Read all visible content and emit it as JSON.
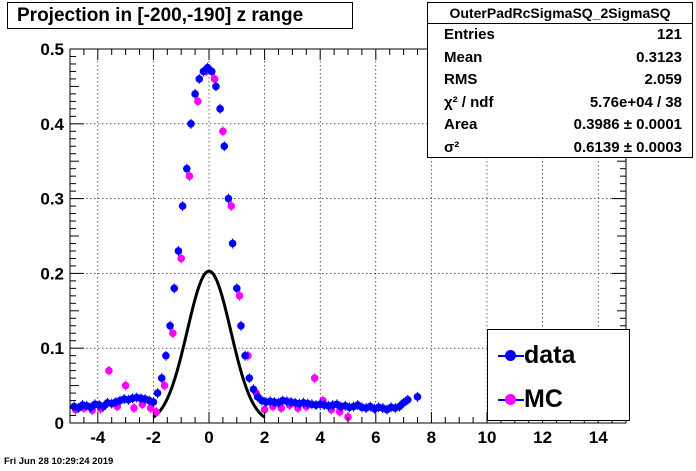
{
  "title": "Projection in [-200,-190] z range",
  "stats": {
    "name": "OuterPadRcSigmaSQ_2SigmaSQ",
    "rows": [
      {
        "label": "Entries",
        "value": "121"
      },
      {
        "label": "Mean",
        "value": "0.3123"
      },
      {
        "label": "RMS",
        "value": "2.059"
      },
      {
        "label": "χ² / ndf",
        "value": "5.76e+04 / 38"
      },
      {
        "label": "Area",
        "value": "0.3986 ± 0.0001"
      },
      {
        "label": "σ²",
        "value": "0.6139 ± 0.0003"
      }
    ]
  },
  "legend": {
    "items": [
      {
        "label": "data",
        "color": "#0000ff"
      },
      {
        "label": "MC",
        "color": "#ff00ff"
      }
    ]
  },
  "datestamp": "Fri Jun 28 10:29:24 2019",
  "chart_data": {
    "type": "scatter",
    "xlim": [
      -5,
      15
    ],
    "ylim": [
      0,
      0.5
    ],
    "xticks": [
      -4,
      -2,
      0,
      2,
      4,
      6,
      8,
      10,
      12,
      14
    ],
    "yticks": [
      0,
      0.1,
      0.2,
      0.3,
      0.4,
      0.5
    ],
    "grid": true,
    "colors": {
      "data": "#0000ff",
      "mc": "#ff00ff",
      "fit": "#000000"
    },
    "series": [
      {
        "name": "data",
        "x": [
          -4.85,
          -4.7,
          -4.55,
          -4.4,
          -4.25,
          -4.1,
          -3.95,
          -3.8,
          -3.65,
          -3.5,
          -3.35,
          -3.2,
          -3.05,
          -2.9,
          -2.75,
          -2.6,
          -2.45,
          -2.3,
          -2.15,
          -2.0,
          -1.85,
          -1.7,
          -1.55,
          -1.4,
          -1.25,
          -1.1,
          -0.95,
          -0.8,
          -0.65,
          -0.5,
          -0.35,
          -0.2,
          -0.05,
          0.1,
          0.25,
          0.4,
          0.55,
          0.7,
          0.85,
          1.0,
          1.15,
          1.3,
          1.45,
          1.6,
          1.75,
          1.9,
          2.05,
          2.2,
          2.35,
          2.5,
          2.65,
          2.8,
          2.95,
          3.1,
          3.25,
          3.4,
          3.55,
          3.7,
          3.85,
          4.0,
          4.15,
          4.3,
          4.45,
          4.6,
          4.75,
          4.9,
          5.05,
          5.2,
          5.35,
          5.5,
          5.65,
          5.8,
          5.95,
          6.1,
          6.25,
          6.4,
          6.55,
          6.7,
          6.85,
          7.0,
          7.15,
          7.5
        ],
        "y": [
          0.022,
          0.02,
          0.024,
          0.023,
          0.021,
          0.025,
          0.024,
          0.022,
          0.027,
          0.026,
          0.028,
          0.03,
          0.032,
          0.031,
          0.033,
          0.034,
          0.033,
          0.032,
          0.03,
          0.028,
          0.04,
          0.06,
          0.09,
          0.13,
          0.18,
          0.23,
          0.29,
          0.34,
          0.4,
          0.44,
          0.46,
          0.47,
          0.475,
          0.47,
          0.45,
          0.42,
          0.37,
          0.3,
          0.24,
          0.18,
          0.13,
          0.09,
          0.06,
          0.045,
          0.035,
          0.03,
          0.028,
          0.029,
          0.028,
          0.027,
          0.03,
          0.029,
          0.028,
          0.027,
          0.026,
          0.027,
          0.026,
          0.025,
          0.024,
          0.025,
          0.024,
          0.023,
          0.024,
          0.025,
          0.022,
          0.023,
          0.021,
          0.022,
          0.024,
          0.021,
          0.02,
          0.022,
          0.019,
          0.021,
          0.02,
          0.018,
          0.021,
          0.02,
          0.022,
          0.027,
          0.031,
          0.035
        ]
      },
      {
        "name": "MC",
        "x": [
          -4.8,
          -4.5,
          -4.2,
          -3.9,
          -3.6,
          -3.3,
          -3.0,
          -2.7,
          -2.4,
          -2.1,
          -1.9,
          -1.6,
          -1.3,
          -1.0,
          -0.7,
          -0.4,
          -0.1,
          0.2,
          0.5,
          0.8,
          1.1,
          1.4,
          1.7,
          2.0,
          2.3,
          2.6,
          2.9,
          3.2,
          3.5,
          3.8,
          4.1,
          4.4,
          4.7,
          5.0
        ],
        "y": [
          0.018,
          0.02,
          0.017,
          0.019,
          0.07,
          0.022,
          0.05,
          0.02,
          0.025,
          0.02,
          0.015,
          0.05,
          0.12,
          0.22,
          0.33,
          0.43,
          0.47,
          0.46,
          0.39,
          0.29,
          0.17,
          0.09,
          0.04,
          0.018,
          0.022,
          0.02,
          0.024,
          0.02,
          0.022,
          0.06,
          0.03,
          0.018,
          0.015,
          0.008
        ]
      }
    ],
    "fit": {
      "type": "gaussian",
      "area": 0.3986,
      "sigma2": 0.6139,
      "mean": 0.0
    }
  }
}
